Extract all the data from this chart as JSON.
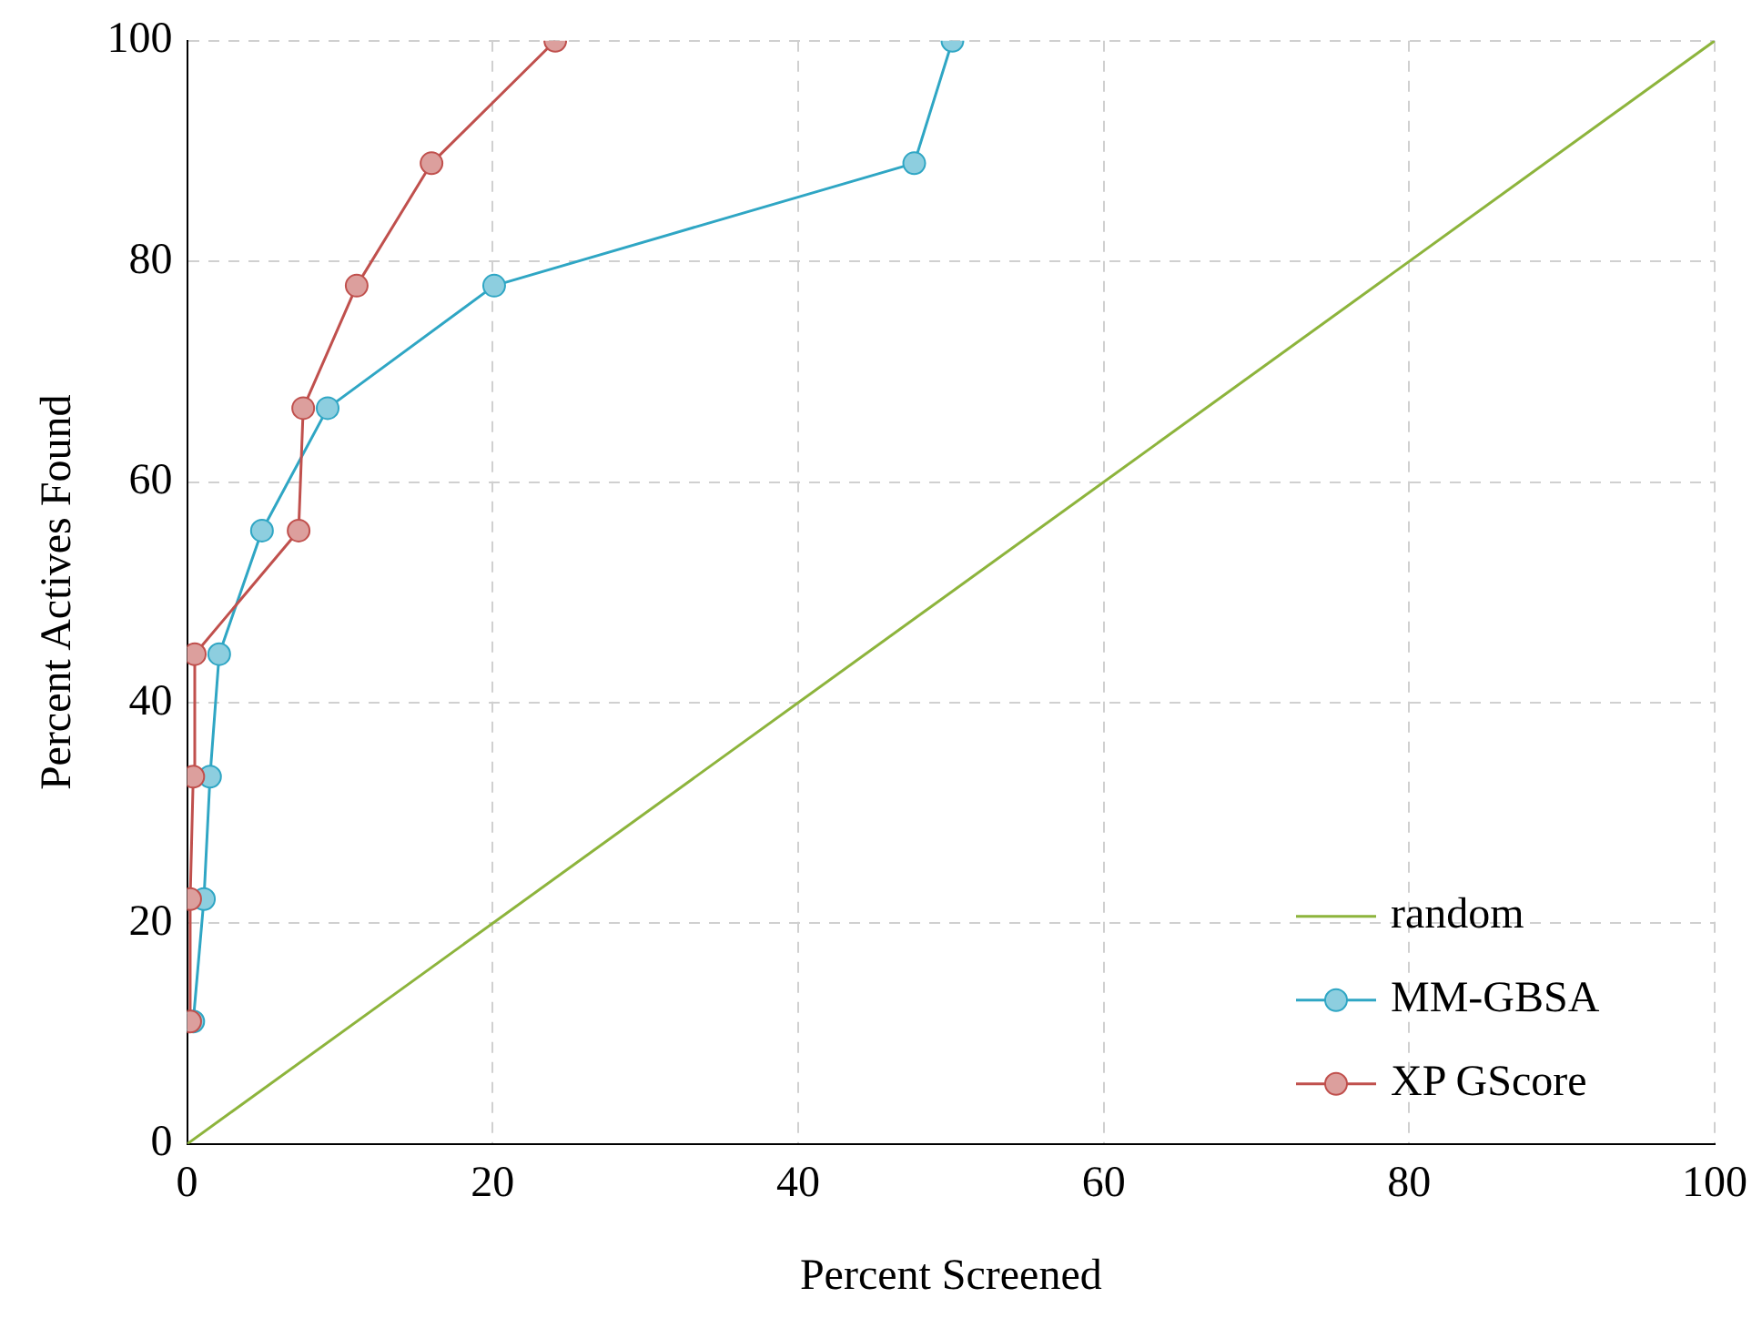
{
  "chart_data": {
    "type": "line",
    "xlabel": "Percent Screened",
    "ylabel": "Percent Actives Found",
    "xlim": [
      0,
      100
    ],
    "xticks": [
      0,
      20,
      40,
      60,
      80,
      100
    ],
    "ylim": [
      0,
      100
    ],
    "yticks": [
      0,
      20,
      40,
      60,
      80,
      100
    ],
    "grid": true,
    "legend": "bottom right",
    "marker": "circle",
    "series": [
      {
        "name": "random",
        "color": "#8db43c",
        "x": [
          0,
          100
        ],
        "values": [
          0,
          100
        ],
        "marker": "none"
      },
      {
        "name": "MM-GBSA",
        "color": "#2fa6c4",
        "x": [
          0.4,
          1.1,
          1.5,
          2.1,
          4.9,
          9.2,
          20.1,
          47.6,
          50.1
        ],
        "values": [
          11.1,
          22.2,
          33.3,
          44.4,
          55.6,
          66.7,
          77.8,
          88.9,
          100
        ]
      },
      {
        "name": "XP GScore",
        "color": "#c0504d",
        "x": [
          0.2,
          0.2,
          0.4,
          0.5,
          7.3,
          7.6,
          11.1,
          16.0,
          24.1
        ],
        "values": [
          11.1,
          22.2,
          33.3,
          44.4,
          55.6,
          66.7,
          77.8,
          88.9,
          100
        ]
      }
    ]
  }
}
